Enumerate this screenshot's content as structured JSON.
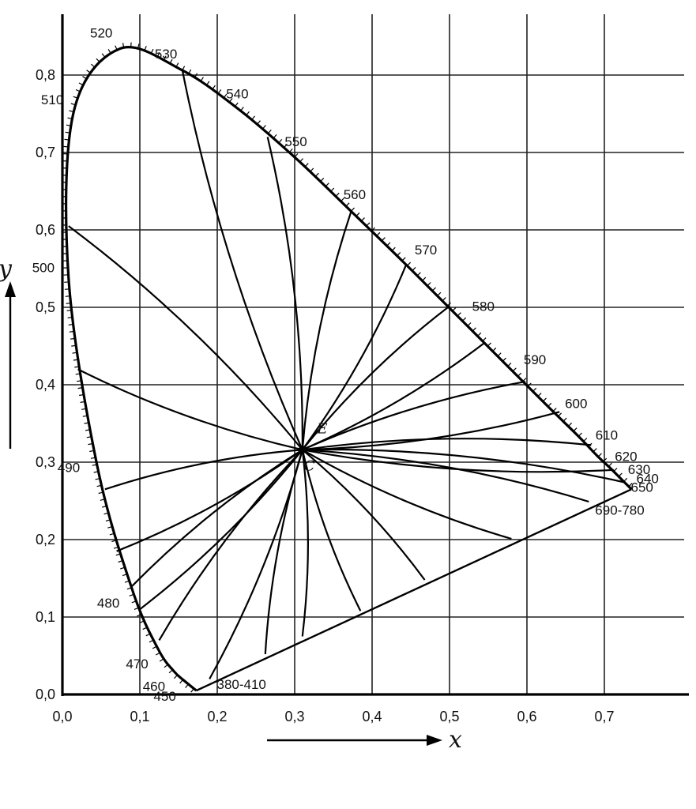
{
  "chart_data": {
    "type": "line",
    "title": "",
    "xlabel": "x",
    "ylabel": "y",
    "xlim": [
      0.0,
      0.8
    ],
    "ylim": [
      0.0,
      0.85
    ],
    "grid": true,
    "x_ticks": [
      {
        "value": 0.0,
        "label": "0,0"
      },
      {
        "value": 0.1,
        "label": "0,1"
      },
      {
        "value": 0.2,
        "label": "0,2"
      },
      {
        "value": 0.3,
        "label": "0,3"
      },
      {
        "value": 0.4,
        "label": "0,4"
      },
      {
        "value": 0.5,
        "label": "0,5"
      },
      {
        "value": 0.6,
        "label": "0,6"
      },
      {
        "value": 0.7,
        "label": "0,7"
      }
    ],
    "y_ticks": [
      {
        "value": 0.0,
        "label": "0,0"
      },
      {
        "value": 0.1,
        "label": "0,1"
      },
      {
        "value": 0.2,
        "label": "0,2"
      },
      {
        "value": 0.3,
        "label": "0,3"
      },
      {
        "value": 0.4,
        "label": "0,4"
      },
      {
        "value": 0.5,
        "label": "0,5"
      },
      {
        "value": 0.6,
        "label": "0,6"
      },
      {
        "value": 0.7,
        "label": "0,7"
      },
      {
        "value": 0.8,
        "label": "0,8"
      }
    ],
    "spectral_locus": [
      {
        "label": "380-410",
        "x": 0.173,
        "y": 0.005
      },
      {
        "label": "450",
        "x": 0.157,
        "y": 0.018
      },
      {
        "label": "460",
        "x": 0.144,
        "y": 0.03
      },
      {
        "label": "470",
        "x": 0.124,
        "y": 0.058
      },
      {
        "label": "480",
        "x": 0.091,
        "y": 0.133
      },
      {
        "label": "490",
        "x": 0.045,
        "y": 0.295
      },
      {
        "label": "500",
        "x": 0.008,
        "y": 0.538
      },
      {
        "label": "510",
        "x": 0.014,
        "y": 0.75
      },
      {
        "label": "520",
        "x": 0.074,
        "y": 0.834
      },
      {
        "label": "530",
        "x": 0.155,
        "y": 0.806
      },
      {
        "label": "540",
        "x": 0.23,
        "y": 0.754
      },
      {
        "label": "550",
        "x": 0.302,
        "y": 0.692
      },
      {
        "label": "560",
        "x": 0.373,
        "y": 0.624
      },
      {
        "label": "570",
        "x": 0.444,
        "y": 0.555
      },
      {
        "label": "580",
        "x": 0.512,
        "y": 0.487
      },
      {
        "label": "590",
        "x": 0.575,
        "y": 0.424
      },
      {
        "label": "600",
        "x": 0.627,
        "y": 0.372
      },
      {
        "label": "610",
        "x": 0.666,
        "y": 0.334
      },
      {
        "label": "620",
        "x": 0.691,
        "y": 0.308
      },
      {
        "label": "630",
        "x": 0.708,
        "y": 0.292
      },
      {
        "label": "640",
        "x": 0.719,
        "y": 0.281
      },
      {
        "label": "650",
        "x": 0.726,
        "y": 0.274
      },
      {
        "label": "690-780",
        "x": 0.735,
        "y": 0.265
      }
    ],
    "white_point": {
      "label": "C",
      "x": 0.31,
      "y": 0.316
    },
    "equal_energy_point": {
      "label": "E",
      "x": 0.333,
      "y": 0.333
    },
    "dominant_wavelength_lines": [
      {
        "from": [
          0.155,
          0.806
        ],
        "to": [
          0.31,
          0.316
        ]
      },
      {
        "from": [
          0.265,
          0.72
        ],
        "to": [
          0.31,
          0.316
        ]
      },
      {
        "from": [
          0.373,
          0.624
        ],
        "to": [
          0.31,
          0.316
        ]
      },
      {
        "from": [
          0.444,
          0.555
        ],
        "to": [
          0.31,
          0.316
        ]
      },
      {
        "from": [
          0.498,
          0.5
        ],
        "to": [
          0.31,
          0.316
        ]
      },
      {
        "from": [
          0.545,
          0.454
        ],
        "to": [
          0.31,
          0.316
        ]
      },
      {
        "from": [
          0.598,
          0.404
        ],
        "to": [
          0.31,
          0.316
        ]
      },
      {
        "from": [
          0.642,
          0.365
        ],
        "to": [
          0.31,
          0.316
        ]
      },
      {
        "from": [
          0.683,
          0.322
        ],
        "to": [
          0.31,
          0.316
        ]
      },
      {
        "from": [
          0.712,
          0.29
        ],
        "to": [
          0.31,
          0.316
        ]
      },
      {
        "from": [
          0.726,
          0.274
        ],
        "to": [
          0.31,
          0.316
        ]
      },
      {
        "from": [
          0.008,
          0.605
        ],
        "to": [
          0.31,
          0.316
        ]
      },
      {
        "from": [
          0.02,
          0.42
        ],
        "to": [
          0.31,
          0.316
        ]
      },
      {
        "from": [
          0.055,
          0.265
        ],
        "to": [
          0.31,
          0.316
        ]
      },
      {
        "from": [
          0.07,
          0.185
        ],
        "to": [
          0.31,
          0.316
        ]
      },
      {
        "from": [
          0.09,
          0.14
        ],
        "to": [
          0.31,
          0.316
        ]
      },
      {
        "from": [
          0.1,
          0.11
        ],
        "to": [
          0.31,
          0.316
        ]
      },
      {
        "from": [
          0.125,
          0.07
        ],
        "to": [
          0.31,
          0.316
        ]
      },
      {
        "from": [
          0.19,
          0.02
        ],
        "to": [
          0.31,
          0.316
        ]
      },
      {
        "from": [
          0.262,
          0.052
        ],
        "to": [
          0.31,
          0.316
        ]
      },
      {
        "from": [
          0.31,
          0.075
        ],
        "to": [
          0.31,
          0.316
        ]
      },
      {
        "from": [
          0.385,
          0.108
        ],
        "to": [
          0.31,
          0.316
        ]
      },
      {
        "from": [
          0.468,
          0.148
        ],
        "to": [
          0.31,
          0.316
        ]
      },
      {
        "from": [
          0.58,
          0.201
        ],
        "to": [
          0.31,
          0.316
        ]
      },
      {
        "from": [
          0.68,
          0.249
        ],
        "to": [
          0.31,
          0.316
        ]
      }
    ]
  }
}
